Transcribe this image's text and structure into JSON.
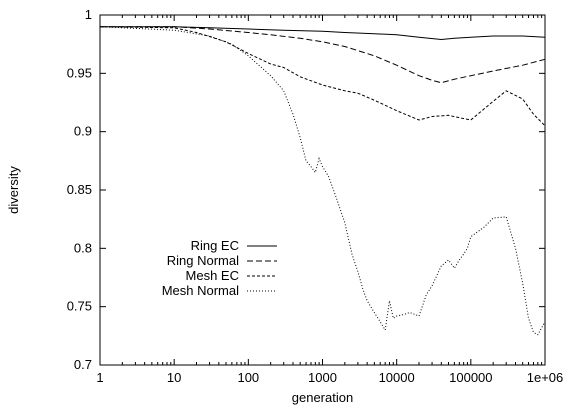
{
  "chart_data": {
    "type": "line",
    "xscale": "log",
    "xlim": [
      1,
      1000000
    ],
    "ylim": [
      0.7,
      1.0
    ],
    "xlabel": "generation",
    "ylabel": "diversity",
    "grid": false,
    "legend_position": "center-left",
    "x_ticks": [
      1,
      10,
      100,
      1000,
      10000,
      100000,
      1000000
    ],
    "x_tick_labels": [
      "1",
      "10",
      "100",
      "1000",
      "10000",
      "100000",
      "1e+06"
    ],
    "y_ticks": [
      0.7,
      0.75,
      0.8,
      0.85,
      0.9,
      0.95,
      1.0
    ],
    "y_tick_labels": [
      "0.7",
      "0.75",
      "0.8",
      "0.85",
      "0.9",
      "0.95",
      "1"
    ],
    "series": [
      {
        "name": "Ring EC",
        "dash": "solid",
        "x": [
          1,
          10,
          30,
          100,
          300,
          1000,
          2000,
          5000,
          10000,
          20000,
          40000,
          60000,
          100000,
          200000,
          500000,
          1000000
        ],
        "y": [
          0.99,
          0.99,
          0.989,
          0.988,
          0.987,
          0.986,
          0.985,
          0.984,
          0.983,
          0.981,
          0.979,
          0.98,
          0.981,
          0.982,
          0.982,
          0.981
        ]
      },
      {
        "name": "Ring Normal",
        "dash": "dashed",
        "x": [
          1,
          10,
          30,
          100,
          200,
          500,
          1000,
          2000,
          5000,
          10000,
          20000,
          30000,
          40000,
          60000,
          100000,
          200000,
          500000,
          1000000
        ],
        "y": [
          0.99,
          0.99,
          0.988,
          0.985,
          0.983,
          0.98,
          0.977,
          0.973,
          0.965,
          0.957,
          0.948,
          0.944,
          0.942,
          0.945,
          0.948,
          0.952,
          0.957,
          0.962
        ]
      },
      {
        "name": "Mesh EC",
        "dash": "short-dashed",
        "x": [
          1,
          10,
          20,
          50,
          100,
          200,
          300,
          500,
          1000,
          2000,
          3000,
          5000,
          10000,
          20000,
          30000,
          50000,
          70000,
          100000,
          200000,
          300000,
          500000,
          700000,
          1000000
        ],
        "y": [
          0.99,
          0.989,
          0.985,
          0.977,
          0.967,
          0.958,
          0.955,
          0.947,
          0.94,
          0.935,
          0.933,
          0.927,
          0.918,
          0.91,
          0.913,
          0.914,
          0.912,
          0.91,
          0.926,
          0.935,
          0.928,
          0.915,
          0.905
        ]
      },
      {
        "name": "Mesh Normal",
        "dash": "dotted",
        "x": [
          1,
          10,
          30,
          60,
          100,
          150,
          200,
          300,
          400,
          500,
          600,
          700,
          800,
          900,
          1000,
          1200,
          1500,
          2000,
          2500,
          3000,
          3500,
          4000,
          5000,
          6000,
          7000,
          8000,
          9000,
          10000,
          12000,
          15000,
          20000,
          25000,
          30000,
          40000,
          50000,
          60000,
          70000,
          80000,
          90000,
          100000,
          150000,
          200000,
          300000,
          400000,
          500000,
          600000,
          700000,
          800000,
          1000000
        ],
        "y": [
          0.99,
          0.987,
          0.982,
          0.975,
          0.965,
          0.955,
          0.948,
          0.935,
          0.915,
          0.895,
          0.875,
          0.87,
          0.865,
          0.877,
          0.87,
          0.862,
          0.845,
          0.822,
          0.795,
          0.78,
          0.765,
          0.755,
          0.745,
          0.737,
          0.73,
          0.755,
          0.74,
          0.742,
          0.743,
          0.745,
          0.742,
          0.76,
          0.768,
          0.785,
          0.79,
          0.783,
          0.79,
          0.795,
          0.8,
          0.81,
          0.818,
          0.826,
          0.827,
          0.8,
          0.77,
          0.74,
          0.728,
          0.726,
          0.737
        ]
      }
    ]
  }
}
